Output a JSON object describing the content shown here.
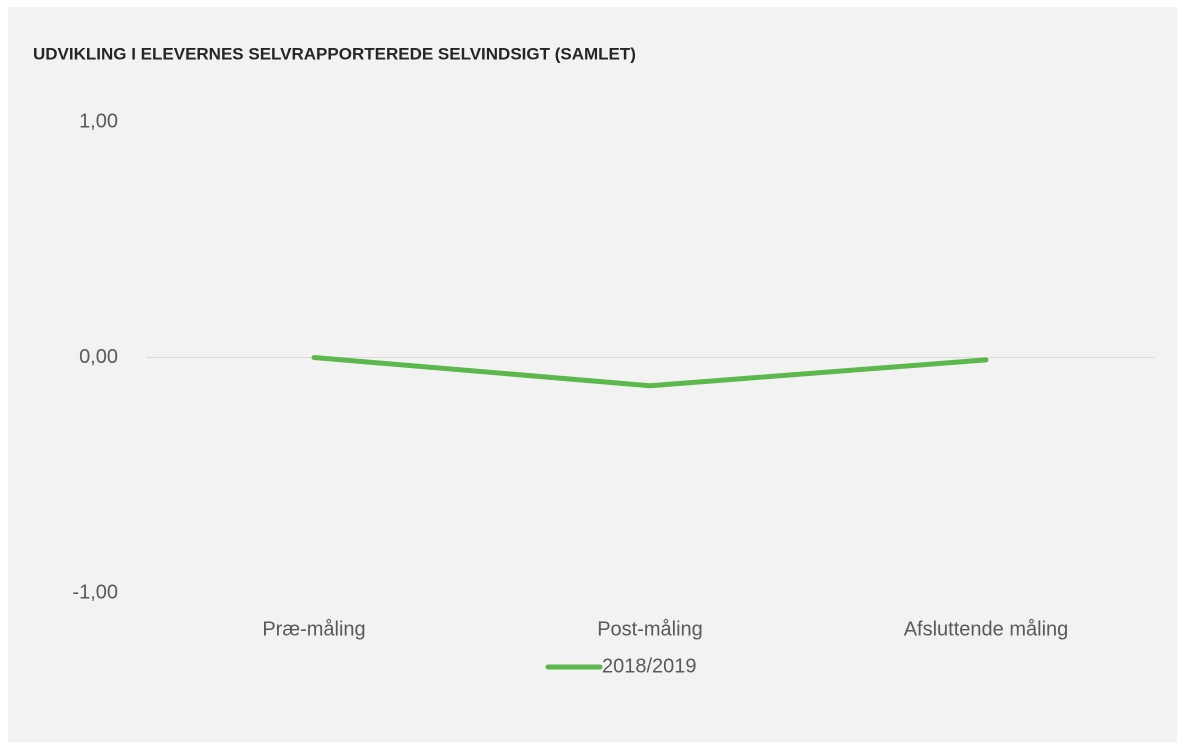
{
  "chart_data": {
    "type": "line",
    "title": "UDVIKLING I ELEVERNES SELVRAPPORTEREDE SELVINDSIGT (SAMLET)",
    "categories": [
      "Præ-måling",
      "Post-måling",
      "Afsluttende måling"
    ],
    "series": [
      {
        "name": "2018/2019",
        "color": "#5cb84d",
        "values": [
          0.0,
          -0.12,
          -0.01
        ]
      }
    ],
    "ylim": [
      -1,
      1
    ],
    "yticks": [
      {
        "value": 1,
        "label": "1,00"
      },
      {
        "value": 0,
        "label": "0,00"
      },
      {
        "value": -1,
        "label": "-1,00"
      }
    ],
    "grid": false,
    "legend": "bottom"
  }
}
